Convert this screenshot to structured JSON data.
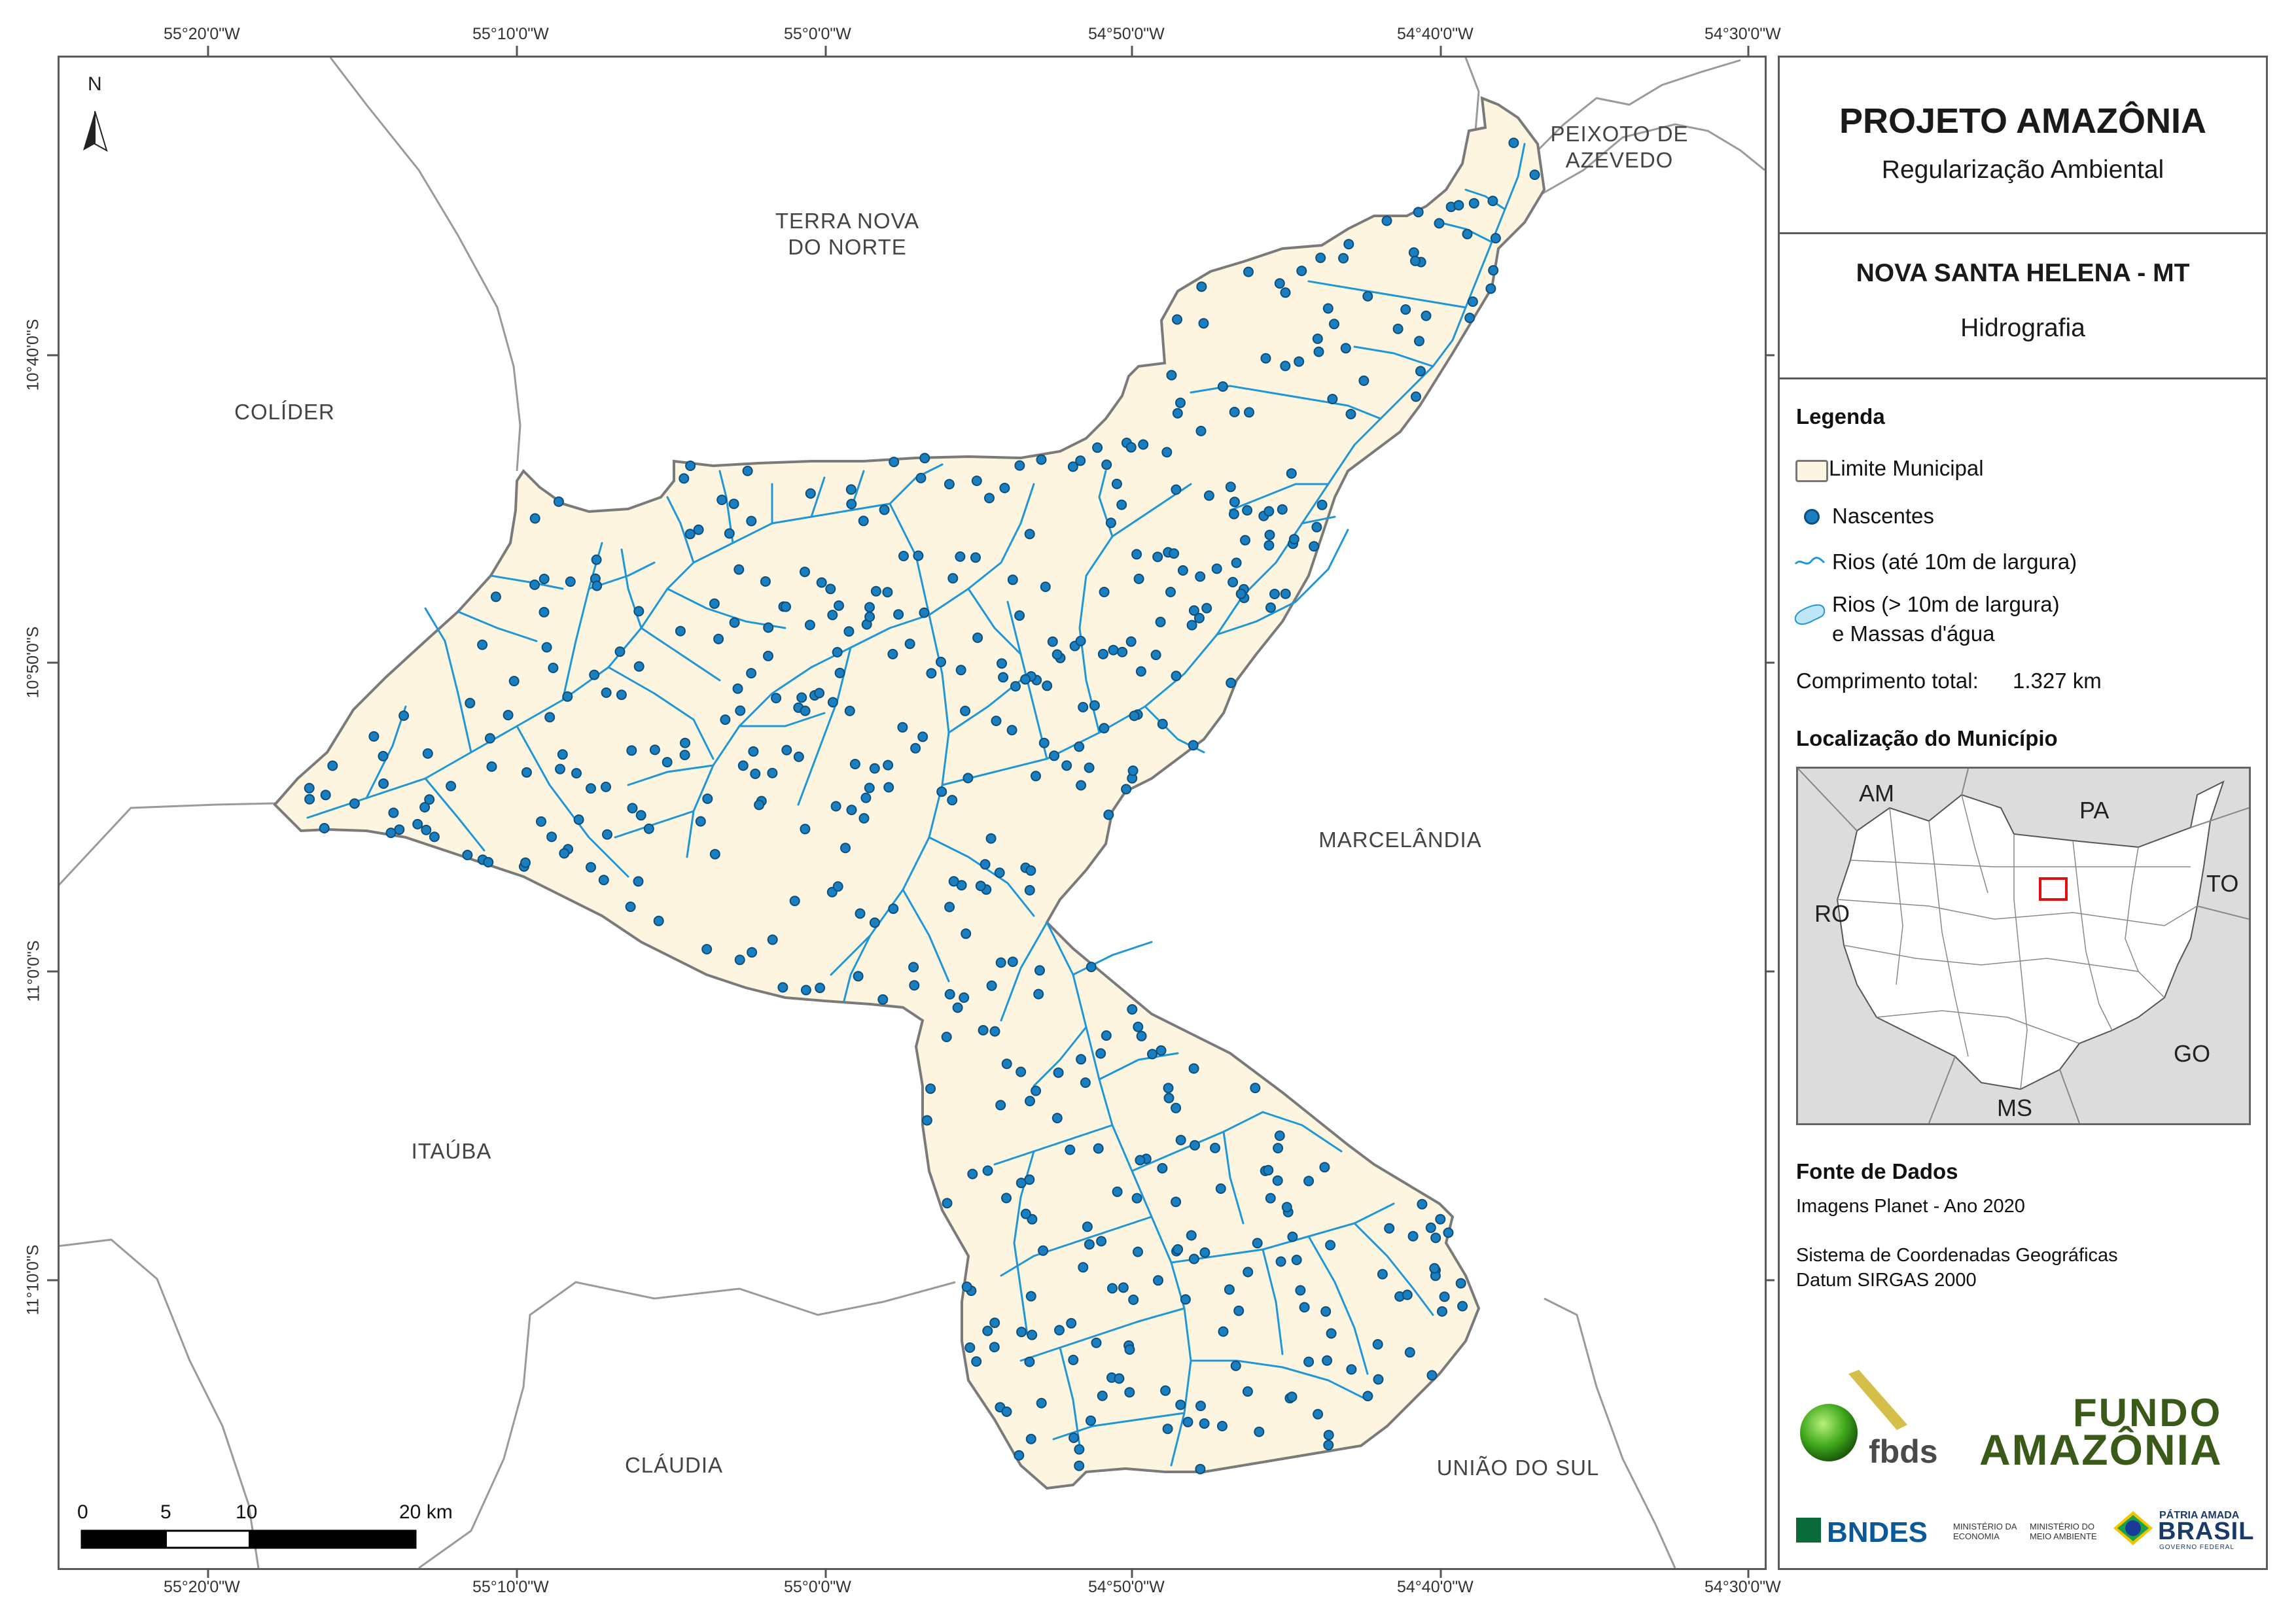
{
  "map": {
    "top_lon_ticks": [
      "55°20'0\"W",
      "55°10'0\"W",
      "55°0'0\"W",
      "54°50'0\"W",
      "54°40'0\"W",
      "54°30'0\"W"
    ],
    "bottom_lon_ticks": [
      "55°20'0\"W",
      "55°10'0\"W",
      "55°0'0\"W",
      "54°50'0\"W",
      "54°40'0\"W",
      "54°30'0\"W"
    ],
    "lat_ticks": [
      "10°40'0\"S",
      "10°50'0\"S",
      "11°0'0\"S",
      "11°10'0\"S"
    ],
    "north_label": "N",
    "neighbors": {
      "peixoto": "PEIXOTO DE\nAZEVEDO",
      "terra_nova": "TERRA NOVA\nDO NORTE",
      "colider": "COLÍDER",
      "marcelandia": "MARCELÂNDIA",
      "itauba": "ITAÚBA",
      "claudia": "CLÁUDIA",
      "uniao": "UNIÃO DO SUL"
    },
    "scale": {
      "labels": [
        "0",
        "5",
        "10",
        "20 km"
      ]
    },
    "colors": {
      "municipality_fill": "#fdf5e0",
      "river": "#1f96d6",
      "spring": "#1a7fc0",
      "boundary": "#777777"
    }
  },
  "panel": {
    "title": "PROJETO AMAZÔNIA",
    "subtitle": "Regularização Ambiental",
    "municipality": "NOVA SANTA HELENA - MT",
    "theme": "Hidrografia",
    "legend_title": "Legenda",
    "legend": {
      "limit": "Limite Municipal",
      "springs": "Nascentes",
      "rivers_small": "Rios (até 10m de largura)",
      "rivers_large_1": "Rios (> 10m de largura)",
      "rivers_large_2": "e Massas d'água"
    },
    "total_length_label": "Comprimento total:",
    "total_length_value": "1.327 km",
    "location_title": "Localização do Município",
    "inset_labels": {
      "am": "AM",
      "pa": "PA",
      "to": "TO",
      "ro": "RO",
      "go": "GO",
      "ms": "MS"
    },
    "source_title": "Fonte de Dados",
    "source_1": "Imagens Planet - Ano 2020",
    "source_2": "Sistema de Coordenadas Geográficas",
    "source_3": "Datum SIRGAS 2000",
    "logos": {
      "fbds": "fbds",
      "fundo_1": "FUNDO",
      "fundo_2": "AMAZÔNIA",
      "bndes": "BNDES",
      "min_eco": "MINISTÉRIO DA\nECONOMIA",
      "min_ma": "MINISTÉRIO DO\nMEIO AMBIENTE",
      "patria": "PÁTRIA AMADA",
      "brasil": "BRASIL",
      "gov": "GOVERNO FEDERAL"
    }
  }
}
